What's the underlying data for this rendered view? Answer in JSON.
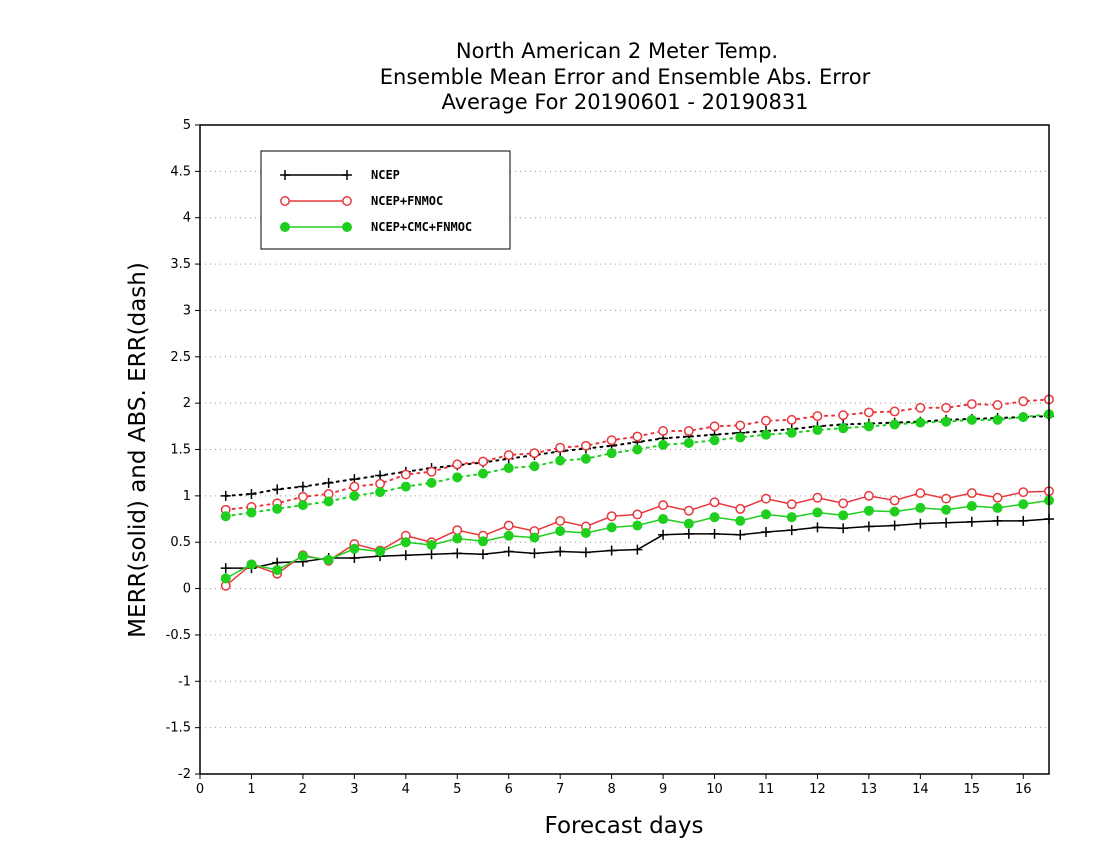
{
  "chart_data": {
    "type": "line",
    "title": [
      "North American 2 Meter Temp.",
      "Ensemble Mean Error and Ensemble Abs. Error",
      "Average For 20190601 - 20190831"
    ],
    "xlabel": "Forecast days",
    "ylabel": "MERR(solid) and ABS. ERR(dash)",
    "xlim": [
      0,
      16.5
    ],
    "ylim": [
      -2,
      5
    ],
    "xticks": [
      "0",
      "1",
      "2",
      "3",
      "4",
      "5",
      "6",
      "7",
      "8",
      "9",
      "10",
      "11",
      "12",
      "13",
      "14",
      "15",
      "16"
    ],
    "yticks": [
      "-2",
      "-1.5",
      "-1",
      "-0.5",
      "0",
      "0.5",
      "1",
      "1.5",
      "2",
      "2.5",
      "3",
      "3.5",
      "4",
      "4.5",
      "5"
    ],
    "grid": true,
    "legend_position": "top-left",
    "x": [
      0.5,
      1,
      1.5,
      2,
      2.5,
      3,
      3.5,
      4,
      4.5,
      5,
      5.5,
      6,
      6.5,
      7,
      7.5,
      8,
      8.5,
      9,
      9.5,
      10,
      10.5,
      11,
      11.5,
      12,
      12.5,
      13,
      13.5,
      14,
      14.5,
      15,
      15.5,
      16,
      16.5
    ],
    "series": [
      {
        "name": "NCEP",
        "color": "#000000",
        "marker": "plus",
        "solid": [
          0.22,
          0.22,
          0.28,
          0.29,
          0.33,
          0.33,
          0.35,
          0.36,
          0.37,
          0.38,
          0.37,
          0.4,
          0.38,
          0.4,
          0.39,
          0.41,
          0.42,
          0.58,
          0.59,
          0.59,
          0.58,
          0.61,
          0.63,
          0.66,
          0.65,
          0.67,
          0.68,
          0.7,
          0.71,
          0.72,
          0.73,
          0.73,
          0.75
        ],
        "dash": [
          1.0,
          1.02,
          1.07,
          1.1,
          1.14,
          1.18,
          1.22,
          1.26,
          1.3,
          1.33,
          1.36,
          1.4,
          1.44,
          1.48,
          1.51,
          1.54,
          1.58,
          1.62,
          1.64,
          1.66,
          1.68,
          1.7,
          1.72,
          1.75,
          1.77,
          1.78,
          1.79,
          1.8,
          1.82,
          1.83,
          1.84,
          1.85,
          1.86
        ]
      },
      {
        "name": "NCEP+FNMOC",
        "color": "#e8383d",
        "marker": "open-circle",
        "solid": [
          0.03,
          0.26,
          0.16,
          0.36,
          0.3,
          0.48,
          0.41,
          0.57,
          0.5,
          0.63,
          0.57,
          0.68,
          0.62,
          0.73,
          0.67,
          0.78,
          0.8,
          0.9,
          0.84,
          0.93,
          0.86,
          0.97,
          0.91,
          0.98,
          0.92,
          1.0,
          0.95,
          1.03,
          0.97,
          1.03,
          0.98,
          1.04,
          1.05
        ],
        "dash": [
          0.85,
          0.88,
          0.92,
          0.99,
          1.02,
          1.1,
          1.13,
          1.23,
          1.26,
          1.34,
          1.37,
          1.44,
          1.46,
          1.52,
          1.54,
          1.6,
          1.64,
          1.7,
          1.7,
          1.75,
          1.76,
          1.81,
          1.82,
          1.86,
          1.87,
          1.9,
          1.91,
          1.95,
          1.95,
          1.99,
          1.98,
          2.02,
          2.04
        ]
      },
      {
        "name": "NCEP+CMC+FNMOC",
        "color": "#1ecf1e",
        "marker": "filled-circle",
        "solid": [
          0.11,
          0.26,
          0.2,
          0.35,
          0.31,
          0.43,
          0.4,
          0.5,
          0.47,
          0.54,
          0.51,
          0.57,
          0.55,
          0.62,
          0.6,
          0.66,
          0.68,
          0.75,
          0.7,
          0.77,
          0.73,
          0.8,
          0.77,
          0.82,
          0.79,
          0.84,
          0.83,
          0.87,
          0.85,
          0.89,
          0.87,
          0.91,
          0.95
        ],
        "dash": [
          0.78,
          0.82,
          0.86,
          0.9,
          0.94,
          1.0,
          1.04,
          1.1,
          1.14,
          1.2,
          1.24,
          1.3,
          1.32,
          1.38,
          1.4,
          1.46,
          1.5,
          1.55,
          1.57,
          1.6,
          1.63,
          1.66,
          1.68,
          1.71,
          1.73,
          1.75,
          1.77,
          1.79,
          1.8,
          1.82,
          1.82,
          1.85,
          1.88
        ]
      }
    ]
  }
}
